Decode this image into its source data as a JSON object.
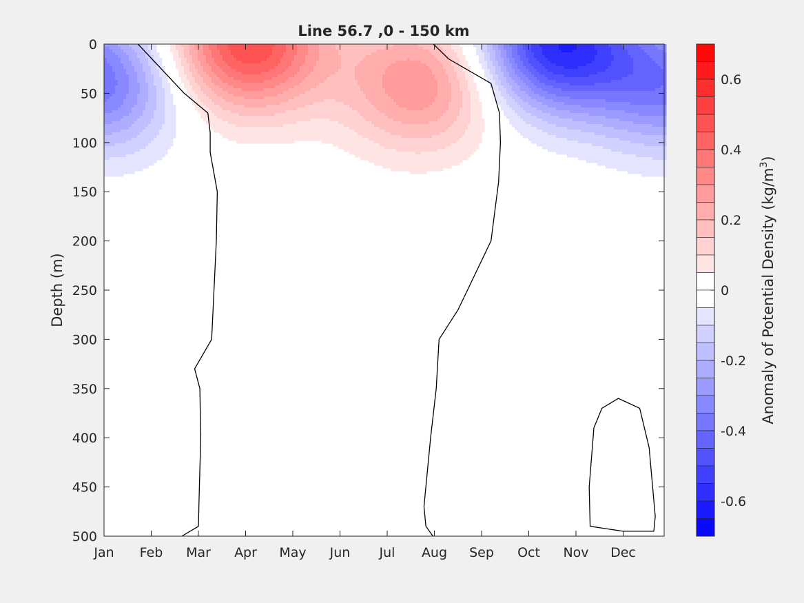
{
  "chart_data": {
    "type": "heatmap",
    "title": "Line 56.7 ,0 - 150 km",
    "xlabel": "",
    "ylabel": "Depth (m)",
    "x_ticks": [
      "Jan",
      "Feb",
      "Mar",
      "Apr",
      "May",
      "Jun",
      "Jul",
      "Aug",
      "Sep",
      "Oct",
      "Nov",
      "Dec"
    ],
    "y_ticks": [
      0,
      50,
      100,
      150,
      200,
      250,
      300,
      350,
      400,
      450,
      500
    ],
    "ylim": [
      0,
      500
    ],
    "y_reversed": true,
    "colorbar": {
      "label_main": "Anomaly of Potential Density (kg/m",
      "label_sup": "3",
      "label_close": ")",
      "range": [
        -0.7,
        0.7
      ],
      "step": 0.05,
      "ticks": [
        "0.6",
        "0.4",
        "0.2",
        "0",
        "-0.2",
        "-0.4",
        "-0.6"
      ],
      "tick_values": [
        0.6,
        0.4,
        0.2,
        0,
        -0.2,
        -0.4,
        -0.6
      ],
      "positive_color": "#ff0000",
      "negative_color": "#0000ff"
    },
    "anomaly_centers": [
      {
        "month": 0.0,
        "depth": 40,
        "value": -0.35
      },
      {
        "month": 3.05,
        "depth": 0,
        "value": 0.5
      },
      {
        "month": 6.7,
        "depth": 40,
        "value": 0.3
      },
      {
        "month": 9.6,
        "depth": 0,
        "value": -0.58
      }
    ],
    "zero_contours": [
      {
        "name": "spring",
        "points": [
          [
            0.72,
            0
          ],
          [
            1.7,
            50
          ],
          [
            2.2,
            70
          ],
          [
            2.25,
            90
          ],
          [
            2.25,
            110
          ],
          [
            2.4,
            150
          ],
          [
            2.38,
            200
          ],
          [
            2.28,
            300
          ],
          [
            1.92,
            330
          ],
          [
            2.03,
            350
          ],
          [
            2.05,
            400
          ],
          [
            2.02,
            450
          ],
          [
            2.0,
            490
          ],
          [
            1.65,
            500
          ]
        ]
      },
      {
        "name": "autumn",
        "points": [
          [
            6.98,
            0
          ],
          [
            7.3,
            15
          ],
          [
            8.2,
            40
          ],
          [
            8.38,
            70
          ],
          [
            8.4,
            100
          ],
          [
            8.36,
            140
          ],
          [
            8.2,
            200
          ],
          [
            7.5,
            270
          ],
          [
            7.1,
            300
          ],
          [
            7.04,
            350
          ],
          [
            6.92,
            400
          ],
          [
            6.78,
            470
          ],
          [
            6.82,
            490
          ],
          [
            6.97,
            500
          ]
        ]
      },
      {
        "name": "deep",
        "points": [
          [
            10.9,
            360
          ],
          [
            11.35,
            370
          ],
          [
            11.55,
            410
          ],
          [
            11.68,
            480
          ],
          [
            11.65,
            495
          ],
          [
            11.0,
            495
          ],
          [
            10.3,
            490
          ],
          [
            10.28,
            450
          ],
          [
            10.38,
            390
          ],
          [
            10.55,
            370
          ],
          [
            10.9,
            360
          ]
        ]
      }
    ]
  }
}
